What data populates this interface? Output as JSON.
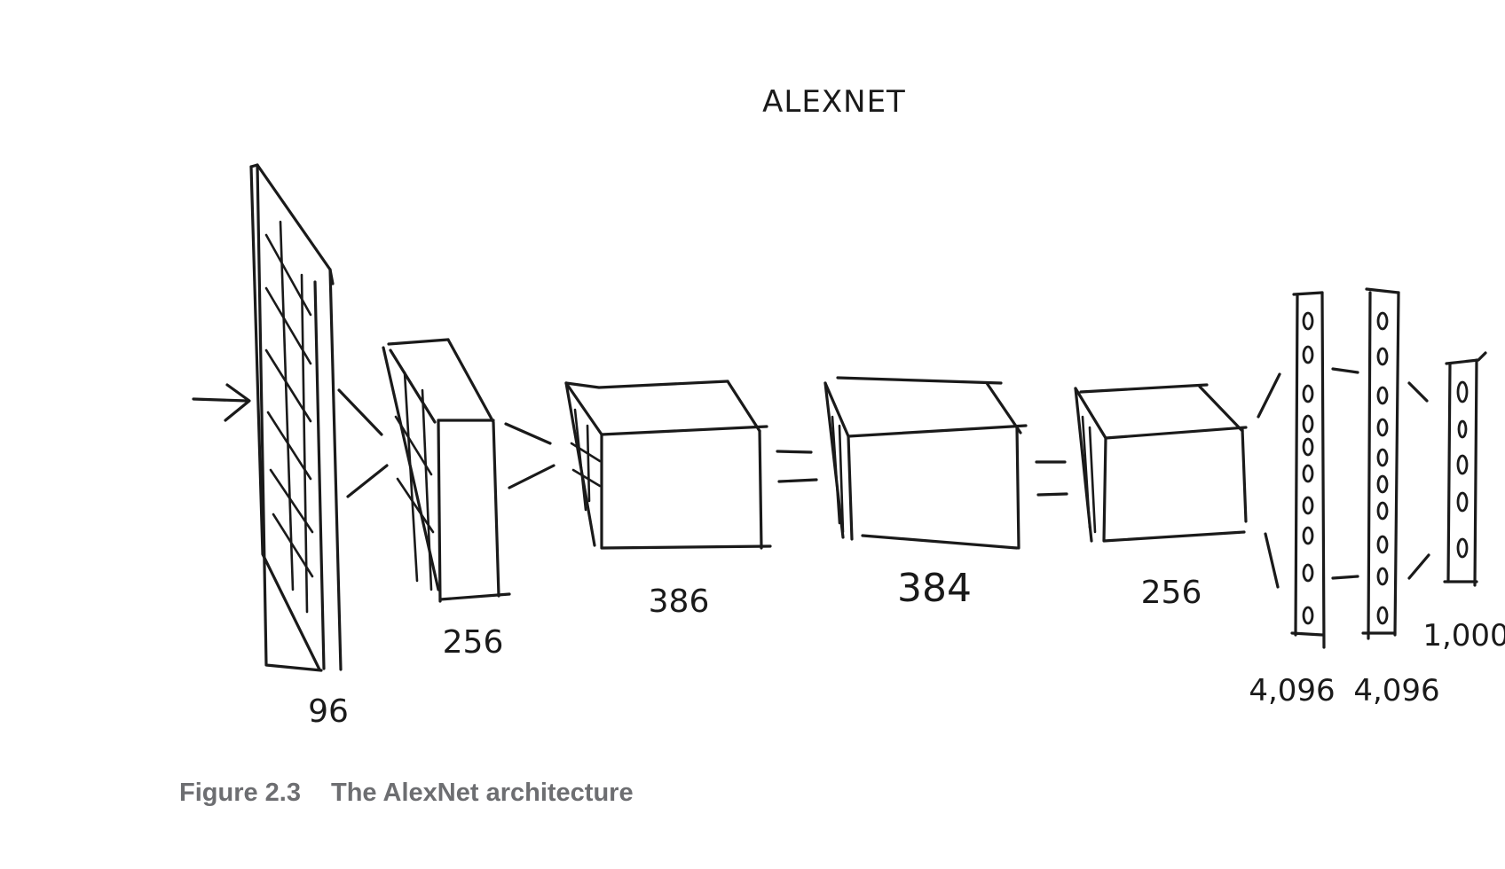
{
  "diagram": {
    "title": "ALEXNET",
    "layers": [
      {
        "id": "conv1",
        "label": "96"
      },
      {
        "id": "conv2",
        "label": "256"
      },
      {
        "id": "conv3",
        "label": "386"
      },
      {
        "id": "conv4",
        "label": "384"
      },
      {
        "id": "conv5",
        "label": "256"
      },
      {
        "id": "fc6",
        "label": "4,096"
      },
      {
        "id": "fc7",
        "label": "4,096"
      },
      {
        "id": "fc8",
        "label": "1,000"
      }
    ]
  },
  "figure": {
    "number": "Figure 2.3",
    "caption": "The AlexNet architecture"
  },
  "colors": {
    "ink": "#1a1a1a",
    "caption": "#6d6e71"
  }
}
